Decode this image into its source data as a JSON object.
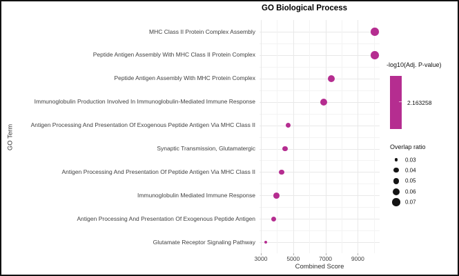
{
  "chart_data": {
    "type": "scatter",
    "title": "GO Biological Process",
    "xlabel": "Combined Score",
    "ylabel": "GO Term",
    "xlim": [
      2915,
      10350
    ],
    "x_ticks": [
      3000,
      5000,
      7000,
      9000
    ],
    "x_minor_gridlines": [
      4000,
      6000,
      8000,
      10000
    ],
    "grid": true,
    "dot_color": "#b52d90",
    "points": [
      {
        "term": "MHC Class II Protein Complex Assembly",
        "combined_score": 10050,
        "overlap_ratio": "0.07"
      },
      {
        "term": "Peptide Antigen Assembly With MHC Class II Protein Complex",
        "combined_score": 10050,
        "overlap_ratio": "0.07"
      },
      {
        "term": "Peptide Antigen Assembly With MHC Protein Complex",
        "combined_score": 7370,
        "overlap_ratio": "0.06"
      },
      {
        "term": "Immunoglobulin Production Involved In Immunoglobulin-Mediated Immune Response",
        "combined_score": 6890,
        "overlap_ratio": "0.06"
      },
      {
        "term": "Antigen Processing And Presentation Of Exogenous Peptide Antigen Via MHC Class II",
        "combined_score": 4680,
        "overlap_ratio": "0.04"
      },
      {
        "term": "Synaptic Transmission, Glutamatergic",
        "combined_score": 4500,
        "overlap_ratio": "0.04"
      },
      {
        "term": "Antigen Processing And Presentation Of Peptide Antigen Via MHC Class II",
        "combined_score": 4280,
        "overlap_ratio": "0.04"
      },
      {
        "term": "Immunoglobulin Mediated Immune Response",
        "combined_score": 3950,
        "overlap_ratio": "0.05"
      },
      {
        "term": "Antigen Processing And Presentation Of Exogenous Peptide Antigen",
        "combined_score": 3780,
        "overlap_ratio": "0.04"
      },
      {
        "term": "Glutamate Receptor Signaling Pathway",
        "combined_score": 3290,
        "overlap_ratio": "0.03"
      }
    ],
    "legend": {
      "color": {
        "title": "-log10(Adj. P-value)",
        "tick_label": "2.163258",
        "bar_color": "#b52d90"
      },
      "size": {
        "title": "Overlap ratio",
        "values": [
          "0.03",
          "0.04",
          "0.05",
          "0.06",
          "0.07"
        ],
        "dot_color": "#141414"
      }
    }
  }
}
